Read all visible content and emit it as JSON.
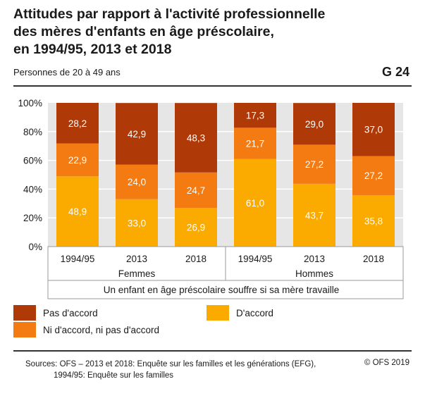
{
  "title_lines": [
    "Attitudes par rapport à l'activité professionnelle",
    "des mères d'enfants en âge préscolaire,",
    "en 1994/95, 2013 et 2018"
  ],
  "subtitle": "Personnes de 20 à 49 ans",
  "graph_number": "G 24",
  "colors": {
    "pas_daccord": "#b03a07",
    "ni_ni": "#f47a12",
    "daccord": "#fbaa00",
    "plot_bg": "#e6e6e6",
    "grid": "#ffffff"
  },
  "chart_data": {
    "type": "bar",
    "stacked": true,
    "statement": "Un enfant en âge préscolaire souffre si sa mère travaille",
    "categories": [
      "1994/95",
      "2013",
      "2018",
      "1994/95",
      "2013",
      "2018"
    ],
    "groups": [
      {
        "name": "Femmes",
        "categories": [
          "1994/95",
          "2013",
          "2018"
        ]
      },
      {
        "name": "Hommes",
        "categories": [
          "1994/95",
          "2013",
          "2018"
        ]
      }
    ],
    "series": [
      {
        "name": "D'accord",
        "color_key": "daccord",
        "values": [
          48.9,
          33.0,
          26.9,
          61.0,
          43.7,
          35.8
        ]
      },
      {
        "name": "Ni d'accord, ni pas d'accord",
        "color_key": "ni_ni",
        "values": [
          22.9,
          24.0,
          24.7,
          21.7,
          27.2,
          27.2
        ]
      },
      {
        "name": "Pas d'accord",
        "color_key": "pas_daccord",
        "values": [
          28.2,
          42.9,
          48.3,
          17.3,
          29.0,
          37.0
        ]
      }
    ],
    "value_labels": [
      [
        "48,9",
        "33,0",
        "26,9",
        "61,0",
        "43,7",
        "35,8"
      ],
      [
        "22,9",
        "24,0",
        "24,7",
        "21,7",
        "27,2",
        "27,2"
      ],
      [
        "28,2",
        "42,9",
        "48,3",
        "17,3",
        "29,0",
        "37,0"
      ]
    ],
    "yticks": [
      "0%",
      "20%",
      "40%",
      "60%",
      "80%",
      "100%"
    ],
    "ylim": [
      0,
      100
    ],
    "grid": true
  },
  "legend": [
    {
      "label": "Pas d'accord",
      "color_key": "pas_daccord"
    },
    {
      "label": "D'accord",
      "color_key": "daccord"
    },
    {
      "label": "Ni d'accord, ni pas d'accord",
      "color_key": "ni_ni"
    }
  ],
  "sources": [
    "Sources: OFS – 2013 et 2018: Enquête sur les familles et les générations (EFG),",
    "1994/95: Enquête sur les familles"
  ],
  "copyright": "© OFS 2019"
}
